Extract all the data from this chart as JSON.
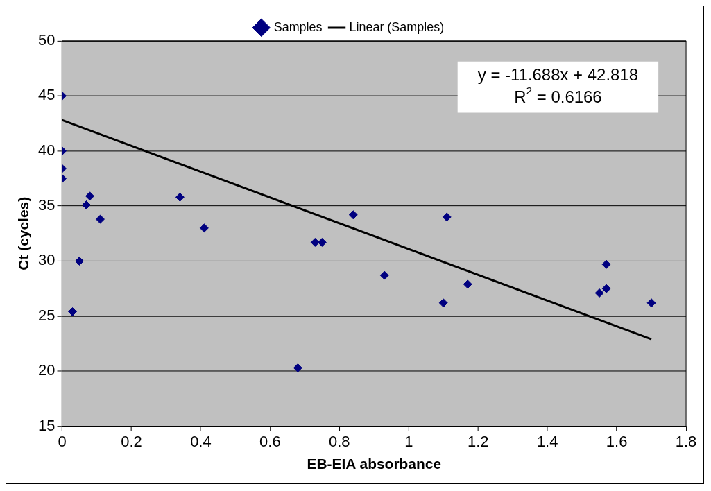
{
  "chart_data": {
    "type": "scatter",
    "xlabel": "EB-EIA absorbance",
    "ylabel": "Ct (cycles)",
    "xlim": [
      0,
      1.8
    ],
    "xticks": [
      0,
      0.2,
      0.4,
      0.6,
      0.8,
      1,
      1.2,
      1.4,
      1.6,
      1.8
    ],
    "ylim": [
      15,
      50
    ],
    "yticks": [
      15,
      20,
      25,
      30,
      35,
      40,
      45,
      50
    ],
    "grid": "y",
    "legend": "top",
    "annotations": [
      "y = -11.688x + 42.818",
      "R$^{2}$ = 0.6166"
    ],
    "series": [
      {
        "name": "Samples",
        "type": "scatter",
        "color": "#000080",
        "marker": "diamond",
        "x": [
          0,
          0,
          0,
          0,
          0.08,
          0.07,
          0.11,
          0.05,
          0.03,
          0.34,
          0.41,
          0.68,
          0.73,
          0.75,
          0.84,
          0.93,
          1.1,
          1.11,
          1.17,
          1.55,
          1.57,
          1.57,
          1.7
        ],
        "values": [
          45,
          40,
          38.4,
          37.5,
          35.9,
          35.1,
          33.8,
          30,
          25.4,
          35.8,
          33,
          20.3,
          31.7,
          31.7,
          34.2,
          28.7,
          26.2,
          34,
          27.9,
          27.1,
          27.5,
          29.7,
          26.2
        ]
      },
      {
        "name": "Linear (Samples)",
        "type": "line",
        "color": "#000000",
        "marker": "none",
        "x": [
          0,
          1.7
        ],
        "values": [
          42.8,
          22.9
        ]
      }
    ]
  }
}
